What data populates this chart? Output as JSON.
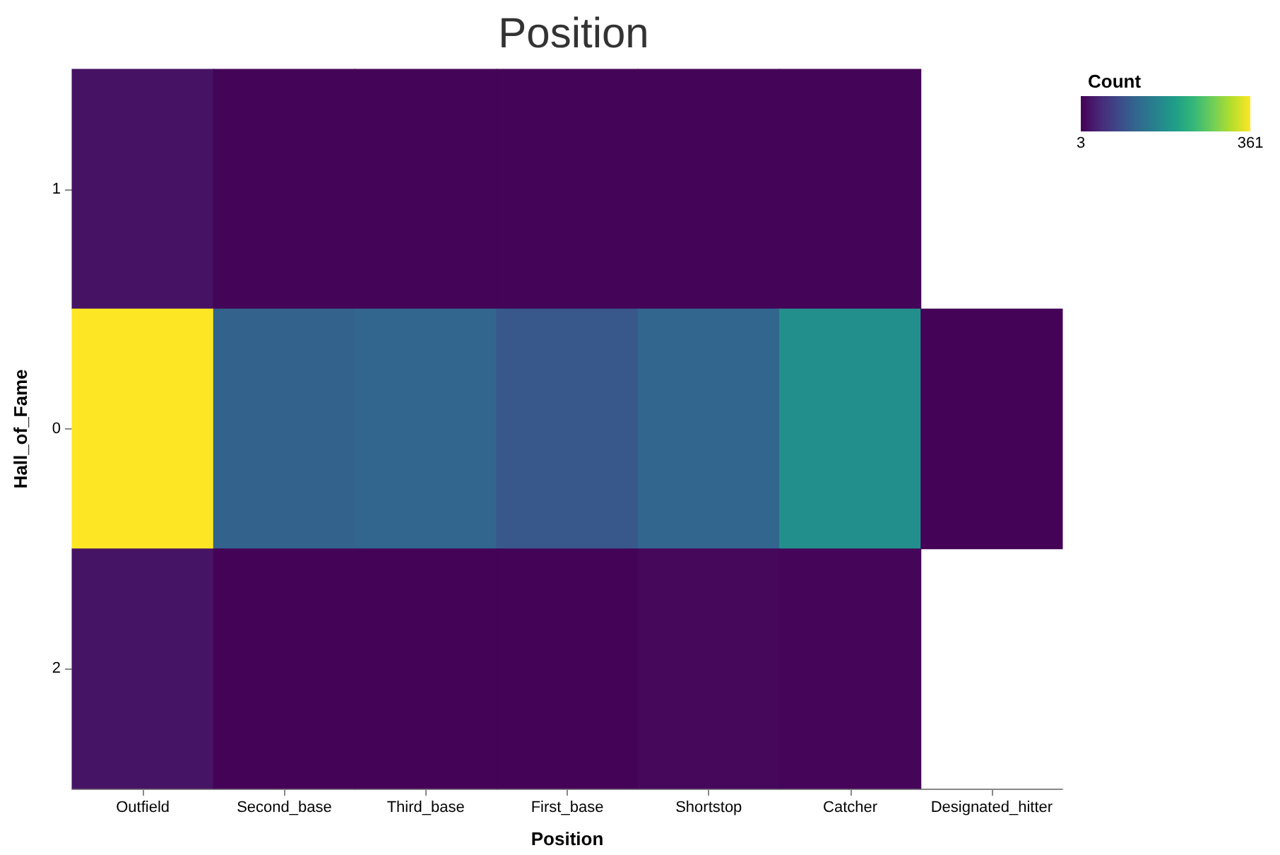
{
  "chart_data": {
    "type": "heatmap",
    "title": "Position",
    "xlabel": "Position",
    "ylabel": "Hall_of_Fame",
    "clabel": "Count",
    "categories": [
      "Outfield",
      "Second_base",
      "Third_base",
      "First_base",
      "Shortstop",
      "Catcher",
      "Designated_hitter"
    ],
    "y_categories": [
      "1",
      "0",
      "2"
    ],
    "cells": [
      [
        20,
        6,
        6,
        6,
        6,
        6,
        null
      ],
      [
        361,
        115,
        120,
        100,
        120,
        180,
        5
      ],
      [
        22,
        5,
        5,
        5,
        10,
        8,
        null
      ]
    ],
    "clim": [
      3,
      361
    ],
    "cticks": [
      3,
      361
    ]
  }
}
